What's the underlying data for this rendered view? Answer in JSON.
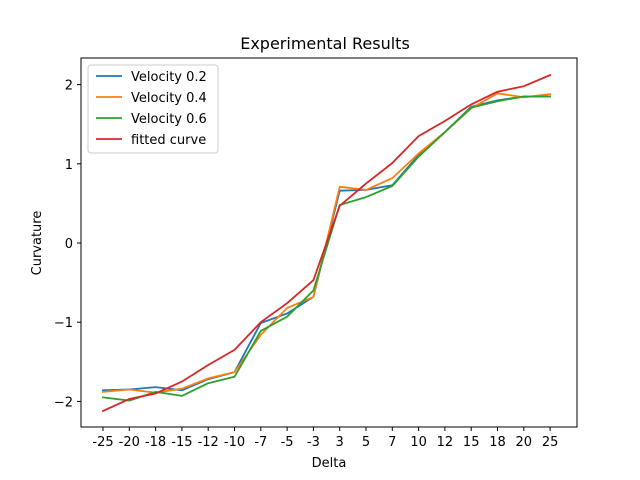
{
  "chart_data": {
    "type": "line",
    "title": "Experimental Results",
    "xlabel": "Delta",
    "ylabel": "Curvature",
    "categories": [
      "-25",
      "-20",
      "-18",
      "-15",
      "-12",
      "-10",
      "-7",
      "-5",
      "-3",
      "3",
      "5",
      "7",
      "10",
      "12",
      "15",
      "18",
      "20",
      "25"
    ],
    "yticks": [
      -2,
      -1,
      0,
      1,
      2
    ],
    "ytick_labels": [
      "−2",
      "−1",
      "0",
      "1",
      "2"
    ],
    "ylim": [
      -2.32,
      2.32
    ],
    "grid": false,
    "legend_position": "top-left",
    "series": [
      {
        "name": "Velocity 0.2",
        "color": "#1f77b4",
        "values": [
          -1.86,
          -1.85,
          -1.82,
          -1.86,
          -1.72,
          -1.63,
          -1.01,
          -0.89,
          -0.68,
          0.66,
          0.67,
          0.73,
          1.11,
          1.4,
          1.72,
          1.8,
          1.85,
          1.85
        ]
      },
      {
        "name": "Velocity 0.4",
        "color": "#ff7f0e",
        "values": [
          -1.88,
          -1.85,
          -1.89,
          -1.84,
          -1.71,
          -1.63,
          -1.16,
          -0.82,
          -0.68,
          0.71,
          0.67,
          0.82,
          1.13,
          1.4,
          1.7,
          1.89,
          1.84,
          1.88
        ]
      },
      {
        "name": "Velocity 0.6",
        "color": "#2ca02c",
        "values": [
          -1.95,
          -1.99,
          -1.88,
          -1.93,
          -1.77,
          -1.69,
          -1.11,
          -0.93,
          -0.6,
          0.48,
          0.58,
          0.72,
          1.09,
          1.4,
          1.71,
          1.79,
          1.85,
          1.85
        ]
      },
      {
        "name": "fitted curve",
        "color": "#d62728",
        "values": [
          -2.12,
          -1.97,
          -1.9,
          -1.75,
          -1.54,
          -1.35,
          -1.0,
          -0.76,
          -0.47,
          0.47,
          0.75,
          1.01,
          1.35,
          1.54,
          1.75,
          1.91,
          1.98,
          2.12
        ]
      }
    ]
  }
}
